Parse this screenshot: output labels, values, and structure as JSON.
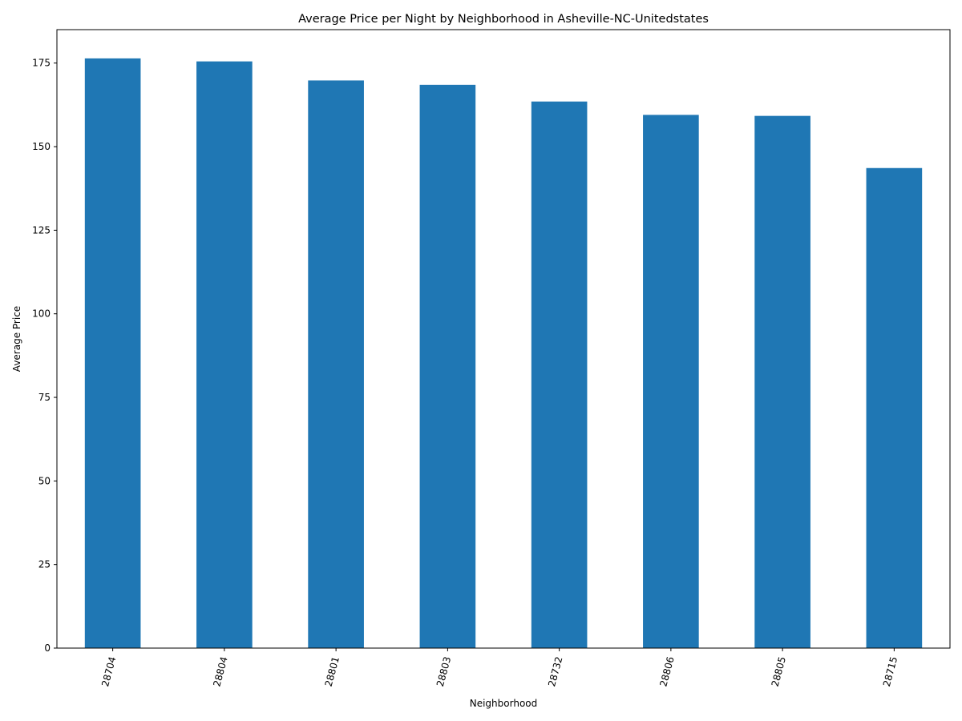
{
  "chart_data": {
    "type": "bar",
    "title": "Average Price per Night by Neighborhood in Asheville-NC-Unitedstates",
    "xlabel": "Neighborhood",
    "ylabel": "Average Price",
    "categories": [
      "28704",
      "28804",
      "28801",
      "28803",
      "28732",
      "28806",
      "28805",
      "28715"
    ],
    "values": [
      176.4,
      175.5,
      169.8,
      168.5,
      163.5,
      159.5,
      159.2,
      143.6
    ],
    "ylim": [
      0,
      185
    ],
    "yticks": [
      0,
      25,
      50,
      75,
      100,
      125,
      150,
      175
    ],
    "bar_color": "#1f77b4",
    "grid": false,
    "legend": "none"
  }
}
